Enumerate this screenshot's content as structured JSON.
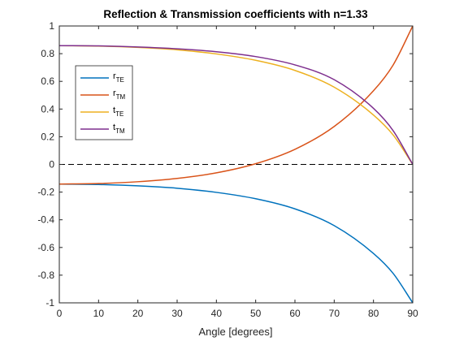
{
  "chart_data": {
    "type": "line",
    "title": "Reflection & Transmission coefficients with n=1.33",
    "xlabel": "Angle [degrees]",
    "ylabel": "",
    "xlim": [
      0,
      90
    ],
    "ylim": [
      -1,
      1
    ],
    "xticks": [
      "0",
      "10",
      "20",
      "30",
      "40",
      "50",
      "60",
      "70",
      "80",
      "90"
    ],
    "yticks": [
      "-1",
      "-0.8",
      "-0.6",
      "-0.4",
      "-0.2",
      "0",
      "0.2",
      "0.4",
      "0.6",
      "0.8",
      "1"
    ],
    "grid": false,
    "legend_position": "upper-left",
    "reference_line": {
      "y": 0,
      "style": "dashed",
      "color": "#000000"
    },
    "x": [
      0,
      10,
      20,
      30,
      40,
      50,
      60,
      70,
      80,
      85,
      90
    ],
    "series": [
      {
        "legend_main": "r",
        "legend_sub": "TE",
        "color": "#0072BD",
        "values": [
          -0.142,
          -0.145,
          -0.155,
          -0.172,
          -0.202,
          -0.248,
          -0.321,
          -0.442,
          -0.643,
          -0.787,
          -1.0
        ]
      },
      {
        "legend_main": "r",
        "legend_sub": "TM",
        "color": "#D95319",
        "values": [
          -0.142,
          -0.138,
          -0.125,
          -0.101,
          -0.061,
          0.005,
          0.109,
          0.274,
          0.532,
          0.718,
          1.0
        ]
      },
      {
        "legend_main": "t",
        "legend_sub": "TE",
        "color": "#EDB120",
        "values": [
          0.858,
          0.855,
          0.845,
          0.828,
          0.798,
          0.752,
          0.679,
          0.558,
          0.357,
          0.213,
          0.0
        ]
      },
      {
        "legend_main": "t",
        "legend_sub": "TM",
        "color": "#7E2F8E",
        "values": [
          0.858,
          0.856,
          0.848,
          0.835,
          0.814,
          0.779,
          0.719,
          0.612,
          0.405,
          0.244,
          0.0
        ]
      }
    ]
  }
}
